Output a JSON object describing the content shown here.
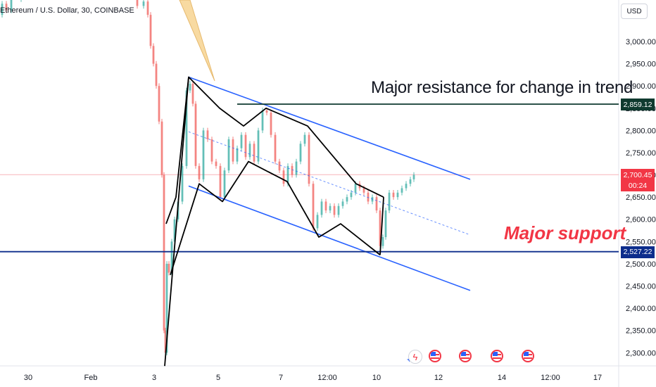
{
  "header": {
    "symbol_line": "Ethereum / U.S. Dollar, 30, COINBASE"
  },
  "currency_button": "USD",
  "price_tags": {
    "resistance": {
      "value": "2,859.12",
      "color": "#0f3a2f"
    },
    "last": {
      "value": "2,700.45",
      "countdown": "00:24",
      "color": "#f23645"
    },
    "support": {
      "value": "2,527.22",
      "color": "#0d2d8c"
    }
  },
  "annotations": {
    "resistance_text": "Major resistance for change in trend",
    "support_text": "Major support"
  },
  "events": {
    "icons": [
      "lightning-icon",
      "us-flag-icon",
      "us-flag-icon",
      "us-flag-icon",
      "us-flag-icon"
    ]
  },
  "chart_data": {
    "type": "candlestick",
    "title": "Ethereum / U.S. Dollar, 30, COINBASE",
    "xlabel": "",
    "ylabel": "",
    "ylim": [
      2270,
      3090
    ],
    "y_ticks": [
      "2,300.00",
      "2,350.00",
      "2,400.00",
      "2,450.00",
      "2,500.00",
      "2,550.00",
      "2,600.00",
      "2,650.00",
      "2,700.00",
      "2,750.00",
      "2,800.00",
      "2,850.00",
      "2,900.00",
      "2,950.00",
      "3,000.00"
    ],
    "y_tick_values": [
      2300,
      2350,
      2400,
      2450,
      2500,
      2550,
      2600,
      2650,
      2700,
      2750,
      2800,
      2850,
      2900,
      2950,
      3000
    ],
    "x_tick_labels": [
      "30",
      "Feb",
      "3",
      "5",
      "7",
      "12:00",
      "10",
      "12",
      "14",
      "12:00",
      "17"
    ],
    "price_path": [
      [
        0,
        3060
      ],
      [
        6,
        3085
      ],
      [
        12,
        3070
      ],
      [
        20,
        3095
      ],
      [
        40,
        3110
      ],
      [
        80,
        3115
      ],
      [
        120,
        3100
      ],
      [
        160,
        3115
      ],
      [
        190,
        3105
      ],
      [
        200,
        3080
      ],
      [
        208,
        3090
      ],
      [
        212,
        3060
      ],
      [
        216,
        2990
      ],
      [
        220,
        2950
      ],
      [
        224,
        2900
      ],
      [
        228,
        2820
      ],
      [
        232,
        2700
      ],
      [
        234,
        2350
      ],
      [
        236,
        2300
      ],
      [
        238,
        2500
      ],
      [
        242,
        2480
      ],
      [
        246,
        2550
      ],
      [
        250,
        2600
      ],
      [
        256,
        2640
      ],
      [
        262,
        2720
      ],
      [
        268,
        2890
      ],
      [
        272,
        2905
      ],
      [
        276,
        2860
      ],
      [
        280,
        2720
      ],
      [
        286,
        2690
      ],
      [
        292,
        2800
      ],
      [
        298,
        2780
      ],
      [
        304,
        2730
      ],
      [
        310,
        2720
      ],
      [
        316,
        2650
      ],
      [
        322,
        2710
      ],
      [
        328,
        2780
      ],
      [
        334,
        2730
      ],
      [
        340,
        2760
      ],
      [
        346,
        2790
      ],
      [
        352,
        2740
      ],
      [
        358,
        2770
      ],
      [
        364,
        2730
      ],
      [
        370,
        2800
      ],
      [
        376,
        2845
      ],
      [
        382,
        2840
      ],
      [
        388,
        2790
      ],
      [
        394,
        2730
      ],
      [
        400,
        2710
      ],
      [
        406,
        2680
      ],
      [
        412,
        2720
      ],
      [
        418,
        2700
      ],
      [
        424,
        2730
      ],
      [
        430,
        2770
      ],
      [
        436,
        2790
      ],
      [
        442,
        2680
      ],
      [
        448,
        2580
      ],
      [
        454,
        2610
      ],
      [
        460,
        2640
      ],
      [
        466,
        2620
      ],
      [
        472,
        2630
      ],
      [
        478,
        2610
      ],
      [
        484,
        2630
      ],
      [
        490,
        2640
      ],
      [
        496,
        2650
      ],
      [
        502,
        2660
      ],
      [
        508,
        2680
      ],
      [
        514,
        2670
      ],
      [
        520,
        2660
      ],
      [
        526,
        2640
      ],
      [
        532,
        2650
      ],
      [
        538,
        2620
      ],
      [
        542,
        2540
      ],
      [
        546,
        2560
      ],
      [
        550,
        2620
      ],
      [
        556,
        2660
      ],
      [
        562,
        2650
      ],
      [
        568,
        2660
      ],
      [
        574,
        2670
      ],
      [
        580,
        2680
      ],
      [
        586,
        2690
      ],
      [
        590,
        2700
      ]
    ],
    "lines": {
      "resistance_level": 2859.12,
      "support_level": 2527.22,
      "last_price": 2700.45
    }
  }
}
